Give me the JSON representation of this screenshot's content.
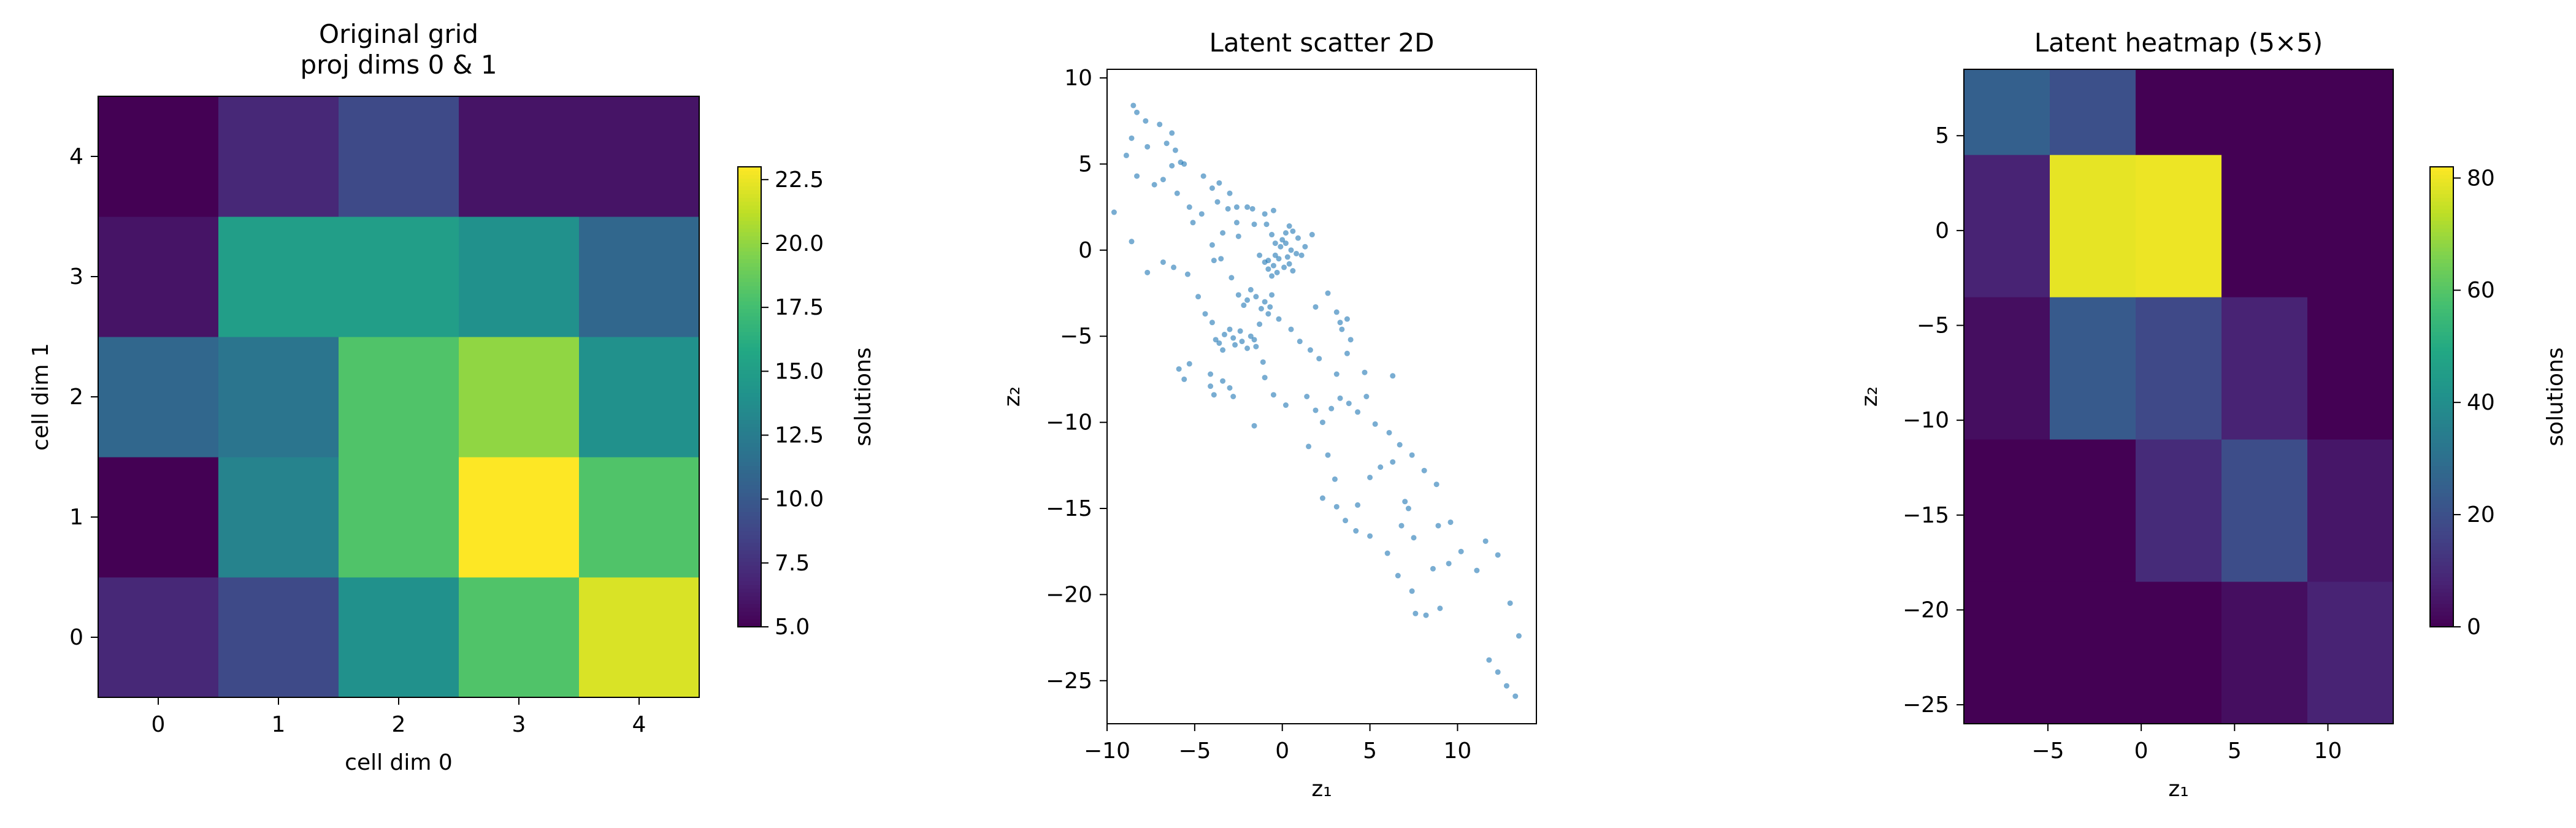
{
  "chart_data": [
    {
      "type": "heatmap",
      "title": "Original grid\nproj dims 0 & 1",
      "xlabel": "cell dim 0",
      "ylabel": "cell dim 1",
      "x_ticks": [
        "0",
        "1",
        "2",
        "3",
        "4"
      ],
      "y_ticks": [
        "0",
        "1",
        "2",
        "3",
        "4"
      ],
      "colorbar": {
        "label": "solutions",
        "range": [
          5.0,
          23.0
        ],
        "ticks": [
          "5.0",
          "7.5",
          "10.0",
          "12.5",
          "15.0",
          "17.5",
          "20.0",
          "22.5"
        ],
        "tick_values": [
          5.0,
          7.5,
          10.0,
          12.5,
          15.0,
          17.5,
          20.0,
          22.5
        ]
      },
      "colormap": "viridis",
      "values_by_row": [
        [
          7,
          9,
          14,
          18,
          22
        ],
        [
          5,
          13,
          18,
          23,
          18
        ],
        [
          11,
          12,
          18,
          20,
          14
        ],
        [
          6,
          15,
          15,
          14,
          11
        ],
        [
          5,
          7,
          9,
          6,
          6
        ]
      ]
    },
    {
      "type": "scatter",
      "title": "Latent scatter 2D",
      "xlabel": "z₁",
      "ylabel": "z₂",
      "xlim": [
        -10,
        14.5
      ],
      "ylim": [
        -27.5,
        10.5
      ],
      "x_ticks": [
        -10,
        -5,
        0,
        5,
        10
      ],
      "x_tick_labels": [
        "−10",
        "−5",
        "0",
        "5",
        "10"
      ],
      "y_ticks": [
        10,
        5,
        0,
        -5,
        -10,
        -15,
        -20,
        -25
      ],
      "y_tick_labels": [
        "10",
        "5",
        "0",
        "−5",
        "−10",
        "−15",
        "−20",
        "−25"
      ],
      "point_color": "#1f77b4",
      "points": [
        [
          -8.5,
          8.4
        ],
        [
          -8.3,
          8.0
        ],
        [
          -7.8,
          7.5
        ],
        [
          -7.0,
          7.3
        ],
        [
          -6.3,
          6.8
        ],
        [
          -8.6,
          6.5
        ],
        [
          -7.7,
          6.0
        ],
        [
          -6.6,
          6.2
        ],
        [
          -6.1,
          5.8
        ],
        [
          -5.8,
          5.1
        ],
        [
          -6.3,
          4.9
        ],
        [
          -5.6,
          5.0
        ],
        [
          -8.9,
          5.5
        ],
        [
          -8.3,
          4.3
        ],
        [
          -7.3,
          3.8
        ],
        [
          -6.8,
          4.1
        ],
        [
          -6.0,
          3.3
        ],
        [
          -4.5,
          4.3
        ],
        [
          -4.0,
          3.6
        ],
        [
          -3.6,
          3.9
        ],
        [
          -3.0,
          3.3
        ],
        [
          -3.7,
          2.8
        ],
        [
          -5.3,
          2.5
        ],
        [
          -4.6,
          2.1
        ],
        [
          -3.1,
          2.4
        ],
        [
          -2.6,
          2.5
        ],
        [
          -2.0,
          2.5
        ],
        [
          -1.7,
          2.4
        ],
        [
          -1.0,
          2.1
        ],
        [
          -0.5,
          2.3
        ],
        [
          -0.9,
          1.5
        ],
        [
          -1.6,
          1.5
        ],
        [
          -2.6,
          1.6
        ],
        [
          -3.4,
          1.0
        ],
        [
          -2.5,
          0.8
        ],
        [
          -9.6,
          2.2
        ],
        [
          -8.6,
          0.5
        ],
        [
          -5.1,
          1.6
        ],
        [
          -4.0,
          0.3
        ],
        [
          -3.5,
          -0.5
        ],
        [
          -3.9,
          -0.6
        ],
        [
          -6.2,
          -1.0
        ],
        [
          -5.4,
          -1.4
        ],
        [
          -6.8,
          -0.7
        ],
        [
          -1.3,
          -0.3
        ],
        [
          -0.8,
          -0.6
        ],
        [
          -0.4,
          -0.3
        ],
        [
          -0.1,
          0.2
        ],
        [
          0.2,
          0.4
        ],
        [
          0.5,
          0.0
        ],
        [
          0.8,
          -0.2
        ],
        [
          1.1,
          -0.3
        ],
        [
          0.4,
          -0.8
        ],
        [
          0.1,
          -1.0
        ],
        [
          -0.3,
          -1.3
        ],
        [
          -0.6,
          -1.5
        ],
        [
          -0.5,
          -0.9
        ],
        [
          0.2,
          1.0
        ],
        [
          0.4,
          1.4
        ],
        [
          0.6,
          1.1
        ],
        [
          0.9,
          0.7
        ],
        [
          -0.2,
          -0.5
        ],
        [
          0.3,
          -0.4
        ],
        [
          0.6,
          -1.2
        ],
        [
          -0.8,
          -1.1
        ],
        [
          0.0,
          0.6
        ],
        [
          1.3,
          0.2
        ],
        [
          -1.0,
          -0.7
        ],
        [
          -0.4,
          0.4
        ],
        [
          -0.6,
          0.9
        ],
        [
          1.7,
          0.9
        ],
        [
          -2.5,
          -2.6
        ],
        [
          -2.0,
          -2.9
        ],
        [
          -1.5,
          -2.7
        ],
        [
          -1.0,
          -3.0
        ],
        [
          -0.7,
          -3.3
        ],
        [
          -1.2,
          -3.4
        ],
        [
          -2.2,
          -3.2
        ],
        [
          -0.6,
          -2.6
        ],
        [
          -1.8,
          -2.3
        ],
        [
          -0.8,
          -3.7
        ],
        [
          -3.3,
          -4.9
        ],
        [
          -2.8,
          -5.1
        ],
        [
          -2.3,
          -5.3
        ],
        [
          -1.8,
          -5.0
        ],
        [
          -1.5,
          -5.6
        ],
        [
          -2.0,
          -5.7
        ],
        [
          -2.7,
          -5.5
        ],
        [
          -3.6,
          -5.4
        ],
        [
          -3.0,
          -4.6
        ],
        [
          -4.0,
          -4.2
        ],
        [
          -4.4,
          -3.7
        ],
        [
          -3.8,
          -5.2
        ],
        [
          -3.4,
          -5.8
        ],
        [
          -2.4,
          -4.7
        ],
        [
          -1.3,
          -4.3
        ],
        [
          -1.6,
          -5.2
        ],
        [
          -0.2,
          -4.0
        ],
        [
          0.5,
          -4.6
        ],
        [
          1.0,
          -5.3
        ],
        [
          1.6,
          -5.8
        ],
        [
          2.1,
          -6.3
        ],
        [
          3.1,
          -3.6
        ],
        [
          3.3,
          -4.2
        ],
        [
          3.7,
          -4.0
        ],
        [
          3.4,
          -4.6
        ],
        [
          3.9,
          -5.2
        ],
        [
          3.7,
          -6.0
        ],
        [
          3.1,
          -7.2
        ],
        [
          -5.3,
          -6.6
        ],
        [
          -5.9,
          -6.9
        ],
        [
          -5.6,
          -7.5
        ],
        [
          -4.1,
          -7.2
        ],
        [
          -4.1,
          -7.9
        ],
        [
          -3.9,
          -8.4
        ],
        [
          -3.4,
          -7.6
        ],
        [
          -3.0,
          -8.0
        ],
        [
          -2.8,
          -8.5
        ],
        [
          -1.0,
          -7.4
        ],
        [
          -0.5,
          -8.4
        ],
        [
          -1.6,
          -10.2
        ],
        [
          0.2,
          -9.0
        ],
        [
          1.4,
          -8.5
        ],
        [
          1.9,
          -9.3
        ],
        [
          2.3,
          -10.0
        ],
        [
          2.8,
          -9.2
        ],
        [
          3.3,
          -8.6
        ],
        [
          3.8,
          -8.9
        ],
        [
          4.3,
          -9.4
        ],
        [
          4.8,
          -8.5
        ],
        [
          6.3,
          -7.3
        ],
        [
          1.5,
          -11.4
        ],
        [
          2.6,
          -11.9
        ],
        [
          3.0,
          -13.3
        ],
        [
          2.3,
          -14.4
        ],
        [
          3.1,
          -14.9
        ],
        [
          3.6,
          -15.7
        ],
        [
          4.3,
          -14.8
        ],
        [
          5.0,
          -13.2
        ],
        [
          5.6,
          -12.6
        ],
        [
          6.7,
          -11.3
        ],
        [
          6.1,
          -10.6
        ],
        [
          7.4,
          -11.9
        ],
        [
          8.1,
          -12.8
        ],
        [
          8.8,
          -13.6
        ],
        [
          7.2,
          -15.0
        ],
        [
          7.0,
          -14.6
        ],
        [
          6.8,
          -16.0
        ],
        [
          7.5,
          -16.7
        ],
        [
          4.2,
          -16.3
        ],
        [
          5.0,
          -16.6
        ],
        [
          6.0,
          -17.6
        ],
        [
          6.6,
          -18.9
        ],
        [
          7.4,
          -19.8
        ],
        [
          7.6,
          -21.1
        ],
        [
          8.2,
          -21.2
        ],
        [
          9.0,
          -20.8
        ],
        [
          8.6,
          -18.5
        ],
        [
          9.5,
          -18.2
        ],
        [
          10.2,
          -17.5
        ],
        [
          11.1,
          -18.6
        ],
        [
          11.6,
          -16.9
        ],
        [
          12.3,
          -17.7
        ],
        [
          13.0,
          -20.5
        ],
        [
          13.5,
          -22.4
        ],
        [
          11.8,
          -23.8
        ],
        [
          12.3,
          -24.5
        ],
        [
          12.8,
          -25.3
        ],
        [
          13.3,
          -25.9
        ],
        [
          9.6,
          -15.8
        ],
        [
          6.3,
          -12.3
        ],
        [
          -4.8,
          -2.7
        ],
        [
          -7.7,
          -1.3
        ],
        [
          -2.9,
          -1.6
        ],
        [
          1.9,
          -3.3
        ],
        [
          4.7,
          -7.1
        ],
        [
          5.3,
          -10.1
        ],
        [
          8.9,
          -16.0
        ],
        [
          2.6,
          -2.5
        ],
        [
          -1.1,
          -6.5
        ]
      ]
    },
    {
      "type": "heatmap",
      "title": "Latent heatmap (5×5)",
      "xlabel": "z₁",
      "ylabel": "z₂",
      "x_edges": [
        -9.5,
        -4.9,
        -0.3,
        4.3,
        8.9,
        13.5
      ],
      "y_edges": [
        -26,
        -18.5,
        -11,
        -3.5,
        4,
        11.5
      ],
      "xlim": [
        -9.5,
        13.5
      ],
      "ylim": [
        -26,
        8.5
      ],
      "x_ticks": [
        -5,
        0,
        5,
        10
      ],
      "x_tick_labels": [
        "−5",
        "0",
        "5",
        "10"
      ],
      "y_ticks": [
        5,
        0,
        -5,
        -10,
        -15,
        -20,
        -25
      ],
      "y_tick_labels": [
        "5",
        "0",
        "−5",
        "−10",
        "−15",
        "−20",
        "−25"
      ],
      "colorbar": {
        "label": "solutions",
        "range": [
          0,
          82
        ],
        "ticks": [
          "0",
          "20",
          "40",
          "60",
          "80"
        ],
        "tick_values": [
          0,
          20,
          40,
          60,
          80
        ]
      },
      "colormap": "viridis",
      "values_by_row": [
        [
          0,
          0,
          0,
          3,
          8
        ],
        [
          0,
          0,
          10,
          19,
          5
        ],
        [
          3,
          23,
          18,
          8,
          0
        ],
        [
          8,
          79,
          80,
          0,
          0
        ],
        [
          25,
          20,
          0,
          0,
          0
        ]
      ]
    }
  ]
}
